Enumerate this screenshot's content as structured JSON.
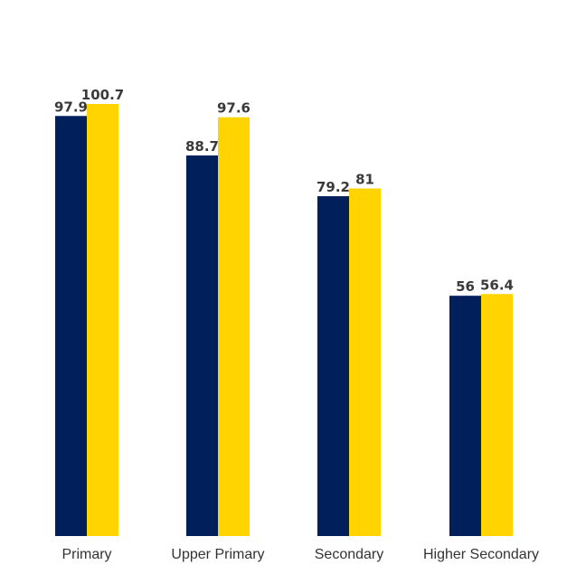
{
  "chart_data": {
    "type": "bar",
    "title": "",
    "xlabel": "",
    "ylabel": "",
    "categories": [
      "Primary",
      "Upper Primary",
      "Secondary",
      "Higher Secondary"
    ],
    "series": [
      {
        "color": "#001f5b",
        "values": [
          97.9,
          88.7,
          79.2,
          56
        ]
      },
      {
        "color": "#ffd400",
        "values": [
          100.7,
          97.6,
          81,
          56.4
        ]
      }
    ],
    "ylim": [
      0,
      100.7
    ],
    "grid": false,
    "legend": "none",
    "value_label_color": "#3a3a3a"
  }
}
